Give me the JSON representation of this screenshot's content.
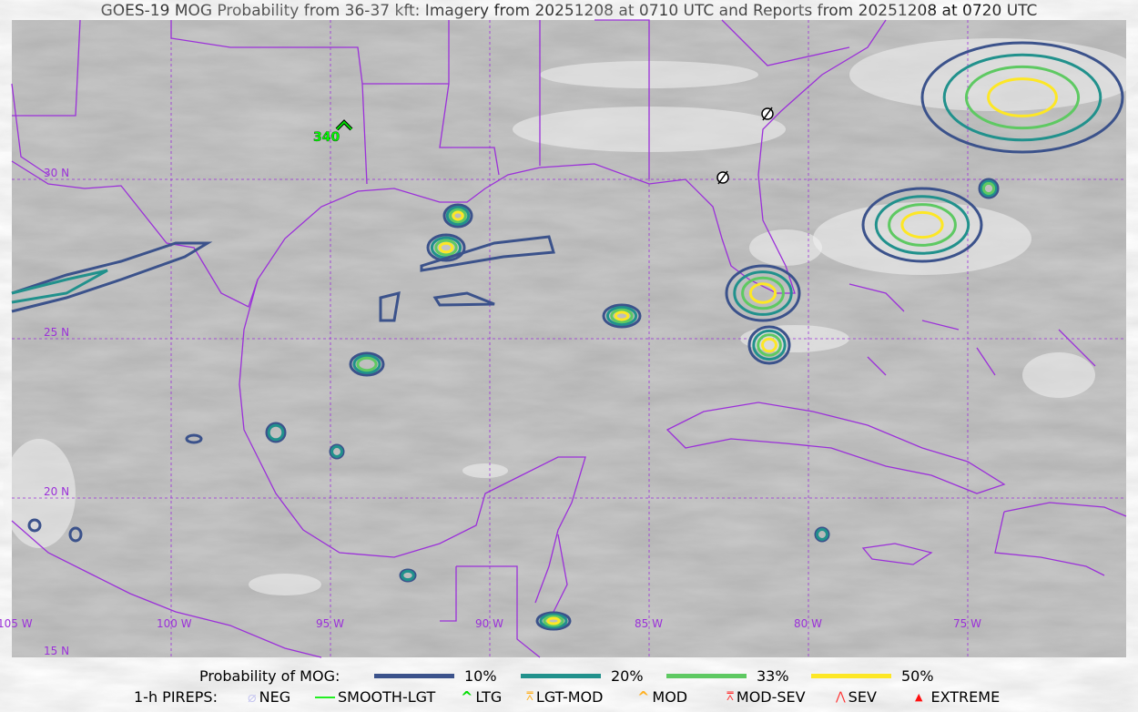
{
  "title": "GOES-19 MOG Probability from 36-37 kft: Imagery from 20251208 at 0710 UTC and Reports from 20251208 at 0720 UTC",
  "map": {
    "lat_labels": [
      "30 N",
      "25 N",
      "20 N",
      "15 N"
    ],
    "lon_labels": [
      "105 W",
      "100 W",
      "95 W",
      "90 W",
      "85 W",
      "80 W",
      "75 W"
    ],
    "pirep_label": "340",
    "colors": {
      "border": "#9b30d9",
      "grid": "#9b30d9",
      "p10": "#3b528b",
      "p20": "#21918c",
      "p33": "#5ec962",
      "p50": "#fde725"
    }
  },
  "legend": {
    "prob_title": "Probability of MOG:",
    "prob_items": [
      {
        "label": "10%",
        "color": "#3b528b"
      },
      {
        "label": "20%",
        "color": "#21918c"
      },
      {
        "label": "33%",
        "color": "#5ec962"
      },
      {
        "label": "50%",
        "color": "#fde725"
      }
    ],
    "pirep_title": "1-h PIREPS:",
    "pirep_items": [
      {
        "label": "NEG",
        "icon": "neg-icon",
        "color": "#c8c8f0"
      },
      {
        "label": "SMOOTH-LGT",
        "icon": "line-icon",
        "color": "#22ee22"
      },
      {
        "label": "LTG",
        "icon": "caret-icon",
        "color": "#00dd00"
      },
      {
        "label": "LGT-MOD",
        "icon": "caret-bar-icon",
        "color": "#ffb020"
      },
      {
        "label": "MOD",
        "icon": "caret-icon",
        "color": "#ffb020"
      },
      {
        "label": "MOD-SEV",
        "icon": "double-caret-bar-icon",
        "color": "#ff3030"
      },
      {
        "label": "SEV",
        "icon": "double-caret-icon",
        "color": "#ff3030"
      },
      {
        "label": "EXTREME",
        "icon": "filled-triangle-icon",
        "color": "#ff1010"
      }
    ]
  }
}
